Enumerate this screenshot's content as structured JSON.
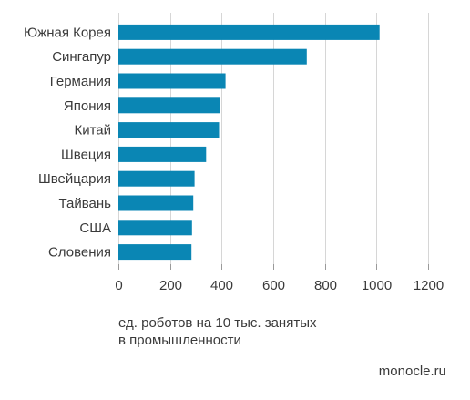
{
  "chart_data": {
    "type": "bar",
    "orientation": "horizontal",
    "categories": [
      "Южная Корея",
      "Сингапур",
      "Германия",
      "Япония",
      "Китай",
      "Швеция",
      "Швейцария",
      "Тайвань",
      "США",
      "Словения"
    ],
    "values": [
      1012,
      730,
      415,
      395,
      390,
      340,
      295,
      290,
      285,
      283
    ],
    "xlim": [
      0,
      1200
    ],
    "xticks": [
      "0",
      "200",
      "400",
      "600",
      "800",
      "1000",
      "1200"
    ],
    "grid": true,
    "bar_color": "#0a86b4",
    "xlabel_lines": [
      "ед. роботов на 10 тыс. занятых",
      "в промышленности"
    ]
  },
  "source": "monocle.ru"
}
